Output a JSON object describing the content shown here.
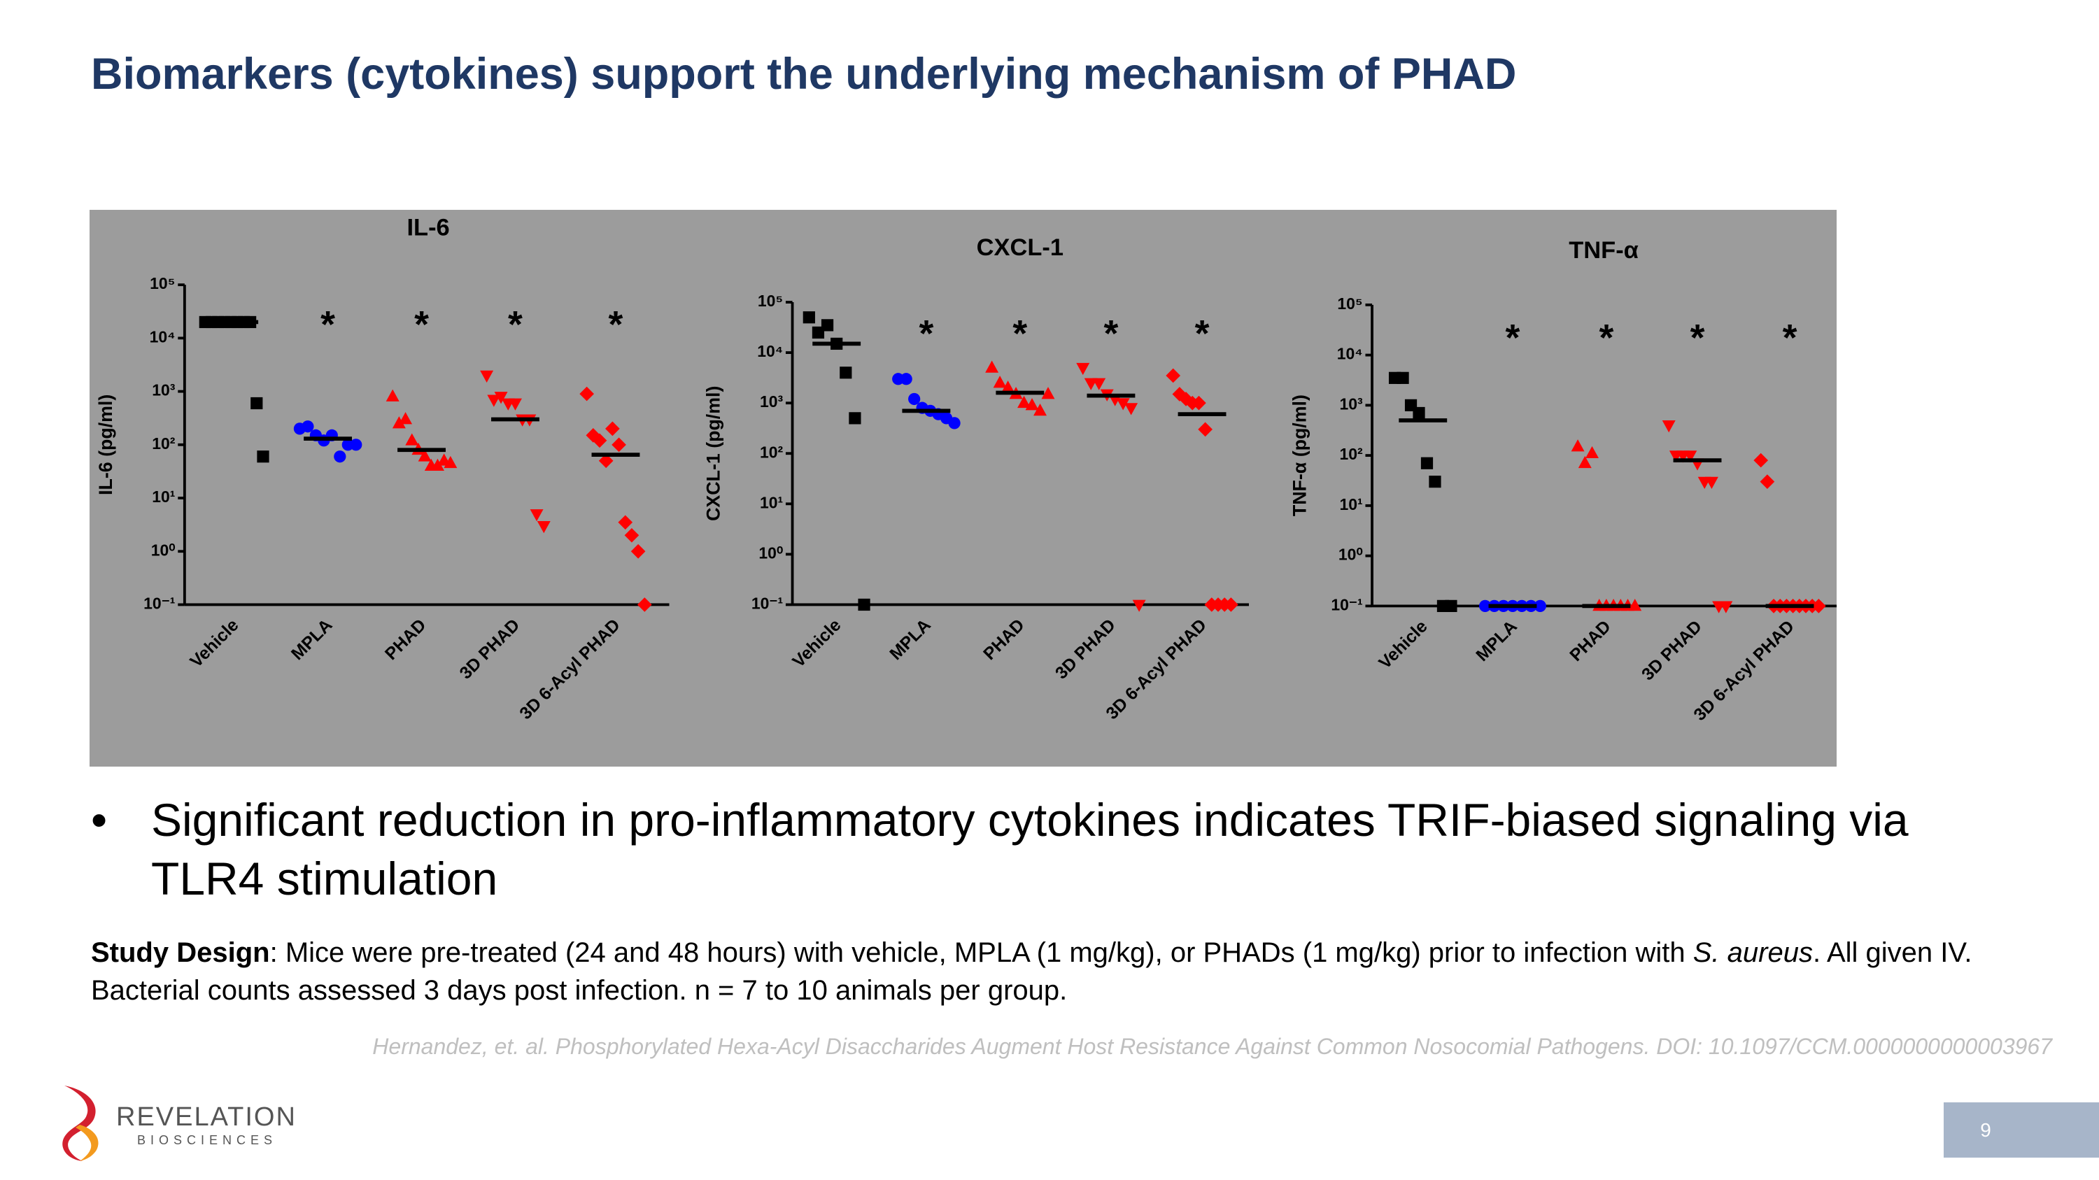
{
  "title": "Biomarkers (cytokines) support the underlying mechanism of PHAD",
  "chart_data": [
    {
      "type": "dot",
      "title": "IL-6",
      "y_label": "IL-6 (pg/ml)",
      "categories": [
        "Vehicle",
        "MPLA",
        "PHAD",
        "3D PHAD",
        "3D 6-Acyl PHAD"
      ],
      "colors": [
        "#000000",
        "#0000ff",
        "#ff0000",
        "#ff0000",
        "#ff0000"
      ],
      "markers": [
        "square",
        "circle",
        "triangle-up",
        "triangle-down",
        "diamond"
      ],
      "values": [
        [
          20000,
          20000,
          20000,
          20000,
          20000,
          20000,
          20000,
          20000,
          600,
          60
        ],
        [
          200,
          220,
          150,
          120,
          150,
          60,
          100,
          100
        ],
        [
          800,
          250,
          300,
          120,
          80,
          60,
          40,
          40,
          50,
          45
        ],
        [
          2000,
          700,
          800,
          600,
          600,
          300,
          300,
          5,
          3
        ],
        [
          900,
          150,
          120,
          50,
          200,
          100,
          3.5,
          2,
          1,
          0.1
        ]
      ],
      "medians": [
        20000,
        130,
        80,
        300,
        65
      ],
      "annotations": [
        null,
        "*",
        "*",
        "*",
        "*"
      ],
      "log_scale": true,
      "ylim": [
        0.1,
        100000
      ],
      "yticks": [
        {
          "value": 0.1,
          "label": "10⁻¹"
        },
        {
          "value": 1,
          "label": "10⁰"
        },
        {
          "value": 10,
          "label": "10¹"
        },
        {
          "value": 100,
          "label": "10²"
        },
        {
          "value": 1000,
          "label": "10³"
        },
        {
          "value": 10000,
          "label": "10⁴"
        },
        {
          "value": 100000,
          "label": "10⁵"
        }
      ]
    },
    {
      "type": "dot",
      "title": "CXCL-1",
      "y_label": "CXCL-1 (pg/ml)",
      "categories": [
        "Vehicle",
        "MPLA",
        "PHAD",
        "3D PHAD",
        "3D 6-Acyl PHAD"
      ],
      "colors": [
        "#000000",
        "#0000ff",
        "#ff0000",
        "#ff0000",
        "#ff0000"
      ],
      "markers": [
        "square",
        "circle",
        "triangle-up",
        "triangle-down",
        "diamond"
      ],
      "values": [
        [
          50000,
          25000,
          35000,
          15000,
          4000,
          500,
          0.1
        ],
        [
          3000,
          3000,
          1200,
          800,
          700,
          600,
          500,
          400
        ],
        [
          5000,
          2500,
          2000,
          1500,
          1000,
          900,
          700,
          1500
        ],
        [
          5000,
          2500,
          2500,
          1500,
          1200,
          1000,
          800,
          0.1
        ],
        [
          3500,
          1500,
          1200,
          1000,
          1000,
          300,
          0.1,
          0.1,
          0.1,
          0.1
        ]
      ],
      "medians": [
        15000,
        700,
        1600,
        1400,
        600
      ],
      "annotations": [
        null,
        "*",
        "*",
        "*",
        "*"
      ],
      "log_scale": true,
      "ylim": [
        0.1,
        100000
      ],
      "yticks": [
        {
          "value": 0.1,
          "label": "10⁻¹"
        },
        {
          "value": 1,
          "label": "10⁰"
        },
        {
          "value": 10,
          "label": "10¹"
        },
        {
          "value": 100,
          "label": "10²"
        },
        {
          "value": 1000,
          "label": "10³"
        },
        {
          "value": 10000,
          "label": "10⁴"
        },
        {
          "value": 100000,
          "label": "10⁵"
        }
      ]
    },
    {
      "type": "dot",
      "title": "TNF-α",
      "y_label": "TNF-α (pg/ml)",
      "categories": [
        "Vehicle",
        "MPLA",
        "PHAD",
        "3D PHAD",
        "3D 6-Acyl PHAD"
      ],
      "colors": [
        "#000000",
        "#0000ff",
        "#ff0000",
        "#ff0000",
        "#ff0000"
      ],
      "markers": [
        "square",
        "circle",
        "triangle-up",
        "triangle-down",
        "diamond"
      ],
      "values": [
        [
          3500,
          3500,
          1000,
          700,
          70,
          30,
          0.1,
          0.1
        ],
        [
          0.1,
          0.1,
          0.1,
          0.1,
          0.1,
          0.1,
          0.1
        ],
        [
          150,
          70,
          110,
          0.1,
          0.1,
          0.1,
          0.1,
          0.1,
          0.1
        ],
        [
          400,
          100,
          100,
          100,
          70,
          30,
          30,
          0.1,
          0.1
        ],
        [
          80,
          30,
          0.1,
          0.1,
          0.1,
          0.1,
          0.1,
          0.1,
          0.1,
          0.1
        ]
      ],
      "medians": [
        500,
        0.1,
        0.1,
        80,
        0.1
      ],
      "annotations": [
        null,
        "*",
        "*",
        "*",
        "*"
      ],
      "log_scale": true,
      "ylim": [
        0.1,
        100000
      ],
      "yticks": [
        {
          "value": 0.1,
          "label": "10⁻¹"
        },
        {
          "value": 1,
          "label": "10⁰"
        },
        {
          "value": 10,
          "label": "10¹"
        },
        {
          "value": 100,
          "label": "10²"
        },
        {
          "value": 1000,
          "label": "10³"
        },
        {
          "value": 10000,
          "label": "10⁴"
        },
        {
          "value": 100000,
          "label": "10⁵"
        }
      ]
    }
  ],
  "bullets": [
    "Significant reduction in pro-inflammatory cytokines indicates TRIF-biased signaling via TLR4 stimulation"
  ],
  "study_design": {
    "label": "Study Design",
    "text": ": Mice were pre-treated (24 and 48 hours) with vehicle, MPLA (1 mg/kg), or PHADs (1 mg/kg) prior to infection with ",
    "organism": "S. aureus",
    "text_end": ".  All given IV.  Bacterial counts assessed 3 days post infection. n = 7 to 10 animals per group."
  },
  "citation": "Hernandez, et. al. Phosphorylated Hexa-Acyl Disaccharides Augment Host Resistance Against Common Nosocomial Pathogens. DOI: 10.1097/CCM.0000000000003967",
  "logo": {
    "name": "REVELATION",
    "sub": "BIOSCIENCES"
  },
  "page_number": "9"
}
